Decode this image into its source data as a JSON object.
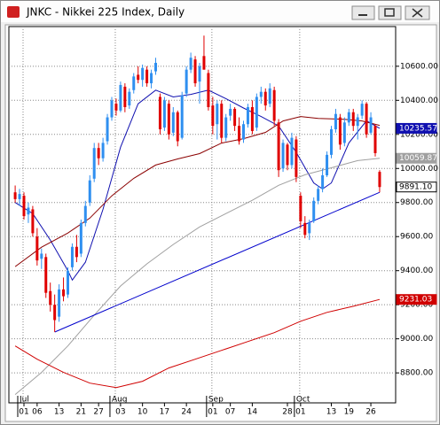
{
  "chart_data": {
    "type": "candlestick",
    "title": "JNKC - Nikkei 225 Index, Daily",
    "categories": [
      null,
      null,
      "01",
      null,
      null,
      "06",
      null,
      null,
      null,
      null,
      "13",
      null,
      null,
      null,
      null,
      "21",
      null,
      null,
      null,
      "27",
      null,
      null,
      null,
      null,
      "03",
      null,
      null,
      null,
      null,
      "10",
      null,
      null,
      null,
      null,
      "17",
      null,
      null,
      null,
      null,
      "24",
      null,
      null,
      null,
      null,
      null,
      "01",
      null,
      null,
      null,
      "07",
      null,
      null,
      null,
      null,
      "14",
      null,
      null,
      null,
      null,
      null,
      null,
      null,
      "28",
      null,
      null,
      "01",
      null,
      null,
      null,
      null,
      null,
      null,
      "13",
      null,
      null,
      null,
      "19",
      null,
      null,
      null,
      null,
      "26",
      null,
      null
    ],
    "months": [
      null,
      null,
      "Jul",
      null,
      null,
      null,
      null,
      null,
      null,
      null,
      null,
      null,
      null,
      null,
      null,
      null,
      null,
      null,
      null,
      null,
      null,
      null,
      null,
      "Aug",
      null,
      null,
      null,
      null,
      null,
      null,
      null,
      null,
      null,
      null,
      null,
      null,
      null,
      null,
      null,
      null,
      null,
      null,
      null,
      null,
      null,
      "Sep",
      null,
      null,
      null,
      null,
      null,
      null,
      null,
      null,
      null,
      null,
      null,
      null,
      null,
      null,
      null,
      null,
      null,
      null,
      null,
      "Oct",
      null,
      null,
      null,
      null,
      null,
      null,
      null,
      null,
      null,
      null,
      null,
      null,
      null,
      null,
      null,
      null,
      null,
      null
    ],
    "open": [
      9860,
      9820,
      9840,
      9730,
      9760,
      9600,
      9470,
      9480,
      9280,
      9200,
      9130,
      9290,
      9260,
      9420,
      9540,
      9500,
      9680,
      9800,
      9940,
      10120,
      10060,
      10160,
      10300,
      10380,
      10340,
      10480,
      10370,
      10460,
      10550,
      10520,
      10580,
      10500,
      10570,
      10420,
      10240,
      10380,
      10210,
      10330,
      10180,
      10440,
      10580,
      10640,
      10510,
      10660,
      10560,
      10370,
      10260,
      10380,
      10180,
      10310,
      10350,
      10250,
      10170,
      10260,
      10360,
      10240,
      10420,
      10450,
      10380,
      10460,
      10270,
      10000,
      10140,
      10020,
      10170,
      9840,
      9680,
      9620,
      9690,
      9810,
      9880,
      9960,
      10080,
      10230,
      10300,
      10150,
      10270,
      10330,
      10250,
      10310,
      10380,
      10210,
      10250,
      9980
    ],
    "high": [
      9900,
      9880,
      9860,
      9800,
      9780,
      9650,
      9530,
      9500,
      9330,
      9260,
      9320,
      9360,
      9420,
      9560,
      9610,
      9700,
      9810,
      9960,
      10150,
      10150,
      10180,
      10320,
      10420,
      10410,
      10510,
      10500,
      10470,
      10560,
      10600,
      10610,
      10600,
      10580,
      10650,
      10440,
      10420,
      10400,
      10360,
      10340,
      10450,
      10600,
      10680,
      10660,
      10620,
      10780,
      10580,
      10420,
      10400,
      10400,
      10320,
      10380,
      10360,
      10300,
      10280,
      10380,
      10400,
      10440,
      10480,
      10470,
      10500,
      10480,
      10290,
      10170,
      10150,
      10210,
      10190,
      9860,
      9720,
      9700,
      9830,
      9900,
      10000,
      10100,
      10250,
      10350,
      10320,
      10300,
      10350,
      10350,
      10320,
      10400,
      10390,
      10330,
      10260,
      9990
    ],
    "low": [
      9800,
      9780,
      9700,
      9680,
      9600,
      9430,
      9410,
      9240,
      9160,
      9040,
      9100,
      9220,
      9240,
      9400,
      9450,
      9480,
      9660,
      9780,
      9920,
      10020,
      10040,
      10140,
      10280,
      10310,
      10330,
      10330,
      10350,
      10440,
      10500,
      10480,
      10480,
      10470,
      10550,
      10200,
      10220,
      10170,
      10190,
      10130,
      10170,
      10420,
      10560,
      10480,
      10380,
      10580,
      10340,
      10200,
      10170,
      10150,
      10160,
      10280,
      10220,
      10140,
      10150,
      10240,
      10200,
      10220,
      10380,
      10340,
      10360,
      10250,
      9950,
      9980,
      9990,
      10000,
      9920,
      9650,
      9590,
      9580,
      9680,
      9790,
      9860,
      9950,
      10060,
      10210,
      10110,
      10130,
      10250,
      10220,
      10170,
      10290,
      10180,
      10200,
      10070,
      9860
    ],
    "close": [
      9820,
      9850,
      9720,
      9770,
      9620,
      9460,
      9500,
      9270,
      9200,
      9110,
      9290,
      9250,
      9400,
      9540,
      9480,
      9680,
      9780,
      9930,
      10120,
      10060,
      10150,
      10300,
      10400,
      10340,
      10490,
      10360,
      10450,
      10540,
      10520,
      10590,
      10500,
      10560,
      10620,
      10230,
      10400,
      10200,
      10330,
      10160,
      10430,
      10580,
      10650,
      10500,
      10600,
      10580,
      10360,
      10250,
      10380,
      10180,
      10300,
      10350,
      10250,
      10160,
      10260,
      10360,
      10220,
      10420,
      10450,
      10370,
      10470,
      10280,
      9990,
      10150,
      10020,
      10180,
      9950,
      9690,
      9610,
      9680,
      9810,
      9880,
      9960,
      10080,
      10230,
      10320,
      10140,
      10270,
      10330,
      10250,
      10300,
      10380,
      10200,
      10300,
      10090,
      9891.1
    ],
    "up_color": "#2f8ff0",
    "down_color": "#e00000",
    "ylim": [
      8624,
      10833
    ],
    "yticks": [
      {
        "value": 8800,
        "label": "8800.00"
      },
      {
        "value": 9000,
        "label": "9000.00"
      },
      {
        "value": 9200,
        "label": "9200.00"
      },
      {
        "value": 9400,
        "label": "9400.00"
      },
      {
        "value": 9600,
        "label": "9600.00"
      },
      {
        "value": 9800,
        "label": "9800.00"
      },
      {
        "value": 10000,
        "label": "10000.00"
      },
      {
        "value": 10200,
        "label": "10200.00"
      },
      {
        "value": 10400,
        "label": "10400.00"
      },
      {
        "value": 10600,
        "label": "10600.00"
      }
    ],
    "grid": true,
    "lines": [
      {
        "color": "#1010b0",
        "x": [
          0,
          4,
          8,
          12,
          13,
          16,
          20,
          24,
          28,
          32,
          36,
          40,
          44,
          48,
          52,
          56,
          60,
          64,
          68,
          70,
          72,
          76,
          80,
          83
        ],
        "values": [
          9800,
          9735,
          9580,
          9400,
          9345,
          9450,
          9760,
          10125,
          10380,
          10460,
          10420,
          10435,
          10460,
          10410,
          10355,
          10305,
          10250,
          10095,
          9915,
          9880,
          9915,
          10150,
          10280,
          10235.57
        ]
      },
      {
        "color": "#8b0000",
        "x": [
          0,
          6,
          12,
          17,
          22,
          27,
          32,
          37,
          42,
          47,
          52,
          57,
          61,
          65,
          69,
          75,
          79,
          83
        ],
        "values": [
          9424,
          9538,
          9621,
          9709,
          9839,
          9942,
          10020,
          10056,
          10087,
          10149,
          10175,
          10212,
          10279,
          10305,
          10294,
          10289,
          10279,
          10253
        ]
      },
      {
        "color": "#a0a0a0",
        "x": [
          0,
          6,
          12,
          18,
          24,
          30,
          36,
          42,
          48,
          54,
          60,
          66,
          72,
          78,
          83
        ],
        "values": [
          8673,
          8803,
          8958,
          9139,
          9310,
          9440,
          9554,
          9657,
          9735,
          9813,
          9901,
          9963,
          10004,
          10046,
          10059.87
        ]
      },
      {
        "color": "#d00000",
        "x": [
          0,
          5,
          11,
          17,
          23,
          29,
          35,
          41,
          47,
          53,
          59,
          65,
          71,
          77,
          83
        ],
        "values": [
          8958,
          8880,
          8803,
          8740,
          8714,
          8751,
          8829,
          8880,
          8932,
          8984,
          9036,
          9103,
          9155,
          9191,
          9231.03
        ]
      },
      {
        "color": "#0000cc",
        "x": [
          9,
          83
        ],
        "values": [
          9040,
          9860
        ]
      }
    ],
    "price_labels": [
      {
        "value": 10235.57,
        "label": "10235.57",
        "color": "#1010b0",
        "text_color": "#ffffff"
      },
      {
        "value": 10059.87,
        "label": "10059.87",
        "color": "#a0a0a0",
        "text_color": "#ffffff"
      },
      {
        "value": 9891.1,
        "label": "9891.10",
        "color": "#ffffff",
        "text_color": "#000000"
      },
      {
        "value": 9231.03,
        "label": "9231.03",
        "color": "#d00000",
        "text_color": "#ffffff"
      }
    ]
  }
}
